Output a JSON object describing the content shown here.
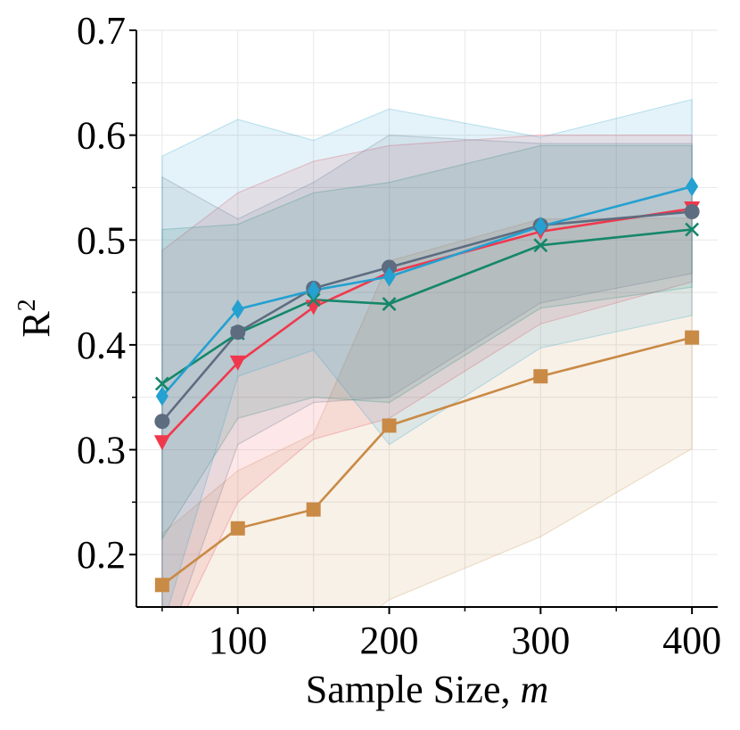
{
  "chart_data": {
    "type": "line",
    "title": "",
    "xlabel": "Sample Size, ",
    "xlabel_var": "m",
    "ylabel": "R",
    "ylabel_sup": "2",
    "xlim": [
      33,
      417
    ],
    "ylim": [
      0.15,
      0.7
    ],
    "xticks": [
      100,
      200,
      300,
      400
    ],
    "xtick_labels": [
      "100",
      "200",
      "300",
      "400"
    ],
    "yticks": [
      0.2,
      0.3,
      0.4,
      0.5,
      0.6,
      0.7
    ],
    "ytick_labels": [
      "0.2",
      "0.3",
      "0.4",
      "0.5",
      "0.6",
      "0.7"
    ],
    "x": [
      50,
      100,
      150,
      200,
      300,
      400
    ],
    "grid": true,
    "legend": "none",
    "series": [
      {
        "name": "series-orange",
        "color": "#c98a45",
        "marker": "square",
        "values": [
          0.171,
          0.225,
          0.243,
          0.323,
          0.37,
          0.407
        ],
        "lower": [
          0.02,
          0.05,
          0.1,
          0.157,
          0.217,
          0.301
        ],
        "upper": [
          0.22,
          0.28,
          0.315,
          0.48,
          0.52,
          0.521
        ]
      },
      {
        "name": "series-red",
        "color": "#f0384d",
        "marker": "triangle-down",
        "values": [
          0.307,
          0.383,
          0.436,
          0.469,
          0.508,
          0.53
        ],
        "lower": [
          0.1,
          0.25,
          0.31,
          0.33,
          0.42,
          0.46
        ],
        "upper": [
          0.49,
          0.545,
          0.575,
          0.59,
          0.6,
          0.6
        ]
      },
      {
        "name": "series-green",
        "color": "#15876a",
        "marker": "x",
        "values": [
          0.363,
          0.411,
          0.443,
          0.439,
          0.495,
          0.51
        ],
        "lower": [
          0.215,
          0.33,
          0.35,
          0.345,
          0.435,
          0.455
        ],
        "upper": [
          0.51,
          0.515,
          0.545,
          0.555,
          0.59,
          0.59
        ]
      },
      {
        "name": "series-slate",
        "color": "#5d6c80",
        "marker": "circle",
        "values": [
          0.327,
          0.412,
          0.454,
          0.474,
          0.514,
          0.527
        ],
        "lower": [
          0.1,
          0.305,
          0.345,
          0.35,
          0.44,
          0.468
        ],
        "upper": [
          0.56,
          0.52,
          0.555,
          0.6,
          0.592,
          0.592
        ]
      },
      {
        "name": "series-blue",
        "color": "#24a0d1",
        "marker": "diamond",
        "values": [
          0.351,
          0.434,
          0.452,
          0.465,
          0.513,
          0.551
        ],
        "lower": [
          0.13,
          0.37,
          0.395,
          0.305,
          0.397,
          0.428
        ],
        "upper": [
          0.58,
          0.615,
          0.595,
          0.625,
          0.598,
          0.634
        ]
      }
    ]
  }
}
